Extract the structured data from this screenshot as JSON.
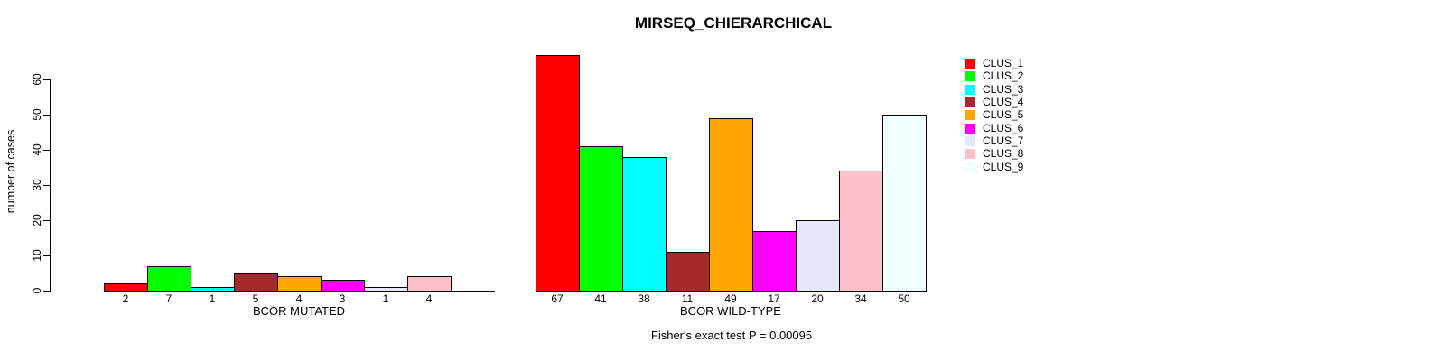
{
  "chart_data": {
    "type": "bar",
    "title": "MIRSEQ_CHIERARCHICAL",
    "ylabel": "number of cases",
    "ylim": [
      0,
      60
    ],
    "yticks": [
      0,
      10,
      20,
      30,
      40,
      50,
      60
    ],
    "grid": false,
    "legend_position": "right",
    "annotation": "Fisher's exact test P = 0.00095",
    "legend": [
      {
        "label": "CLUS_1",
        "color": "#FF0000"
      },
      {
        "label": "CLUS_2",
        "color": "#00FF00"
      },
      {
        "label": "CLUS_3",
        "color": "#00FFFF"
      },
      {
        "label": "CLUS_4",
        "color": "#A52A2A"
      },
      {
        "label": "CLUS_5",
        "color": "#FFA500"
      },
      {
        "label": "CLUS_6",
        "color": "#FF00FF"
      },
      {
        "label": "CLUS_7",
        "color": "#E6E6FA"
      },
      {
        "label": "CLUS_8",
        "color": "#FFC0CB"
      },
      {
        "label": "CLUS_9",
        "color": "#F0FFFF"
      }
    ],
    "groups": [
      {
        "xlabel": "BCOR MUTATED",
        "values": [
          2,
          7,
          1,
          5,
          4,
          3,
          1,
          4,
          0
        ],
        "bar_labels": [
          "2",
          "7",
          "1",
          "5",
          "4",
          "3",
          "1",
          "4"
        ]
      },
      {
        "xlabel": "BCOR WILD-TYPE",
        "values": [
          67,
          41,
          38,
          11,
          49,
          17,
          20,
          34,
          50
        ],
        "bar_labels": [
          "67",
          "41",
          "38",
          "11",
          "49",
          "17",
          "20",
          "34",
          "50"
        ]
      }
    ]
  }
}
